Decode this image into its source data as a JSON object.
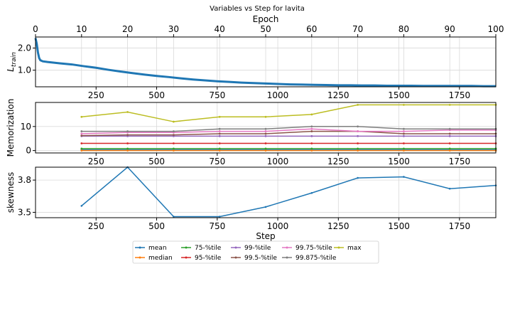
{
  "title": "Variables vs Step for lavita",
  "colors": {
    "mean": "#1f77b4",
    "median": "#ff7f0e",
    "p75": "#2ca02c",
    "p95": "#d62728",
    "p99": "#9467bd",
    "p995": "#8c564b",
    "p9975": "#e377c2",
    "p99875": "#7f7f7f",
    "max": "#bcbd22",
    "grid": "#d9d9d9"
  },
  "chart_data": [
    {
      "id": "loss",
      "type": "line",
      "ylabel_main": "L",
      "ylabel_sub": "train",
      "top_xlabel": "Epoch",
      "top_xlim": [
        0,
        100
      ],
      "top_ticks": [
        0,
        10,
        20,
        30,
        40,
        50,
        60,
        70,
        80,
        90,
        100
      ],
      "xlim": [
        0,
        1900
      ],
      "ylim": [
        0.25,
        2.5
      ],
      "yticks": [
        1.0,
        2.0
      ],
      "ytick_labels": [
        "1.0",
        "2.0"
      ],
      "series": [
        {
          "name": "loss",
          "x": [
            0,
            5,
            10,
            15,
            20,
            30,
            50,
            100,
            150,
            200,
            250,
            300,
            350,
            400,
            450,
            500,
            550,
            600,
            650,
            700,
            750,
            800,
            850,
            900,
            950,
            1000,
            1050,
            1100,
            1150,
            1200,
            1250,
            1300,
            1350,
            1400,
            1450,
            1500,
            1550,
            1600,
            1650,
            1700,
            1750,
            1800,
            1850,
            1900
          ],
          "y": [
            2.45,
            2.2,
            1.8,
            1.55,
            1.45,
            1.4,
            1.37,
            1.31,
            1.26,
            1.18,
            1.11,
            1.02,
            0.94,
            0.87,
            0.8,
            0.74,
            0.69,
            0.63,
            0.58,
            0.54,
            0.5,
            0.47,
            0.44,
            0.42,
            0.4,
            0.38,
            0.36,
            0.35,
            0.34,
            0.33,
            0.32,
            0.32,
            0.31,
            0.31,
            0.3,
            0.3,
            0.3,
            0.29,
            0.29,
            0.29,
            0.29,
            0.29,
            0.28,
            0.28
          ]
        }
      ]
    },
    {
      "id": "memorization",
      "type": "line",
      "ylabel": "Memorization",
      "xlim": [
        0,
        1900
      ],
      "ylim": [
        -1,
        20
      ],
      "yticks": [
        0,
        10
      ],
      "ytick_labels": [
        "0",
        "10"
      ],
      "x": [
        190,
        380,
        570,
        760,
        950,
        1140,
        1330,
        1520,
        1710,
        1900
      ],
      "series": [
        {
          "name": "mean",
          "colorKey": "mean",
          "values": [
            0.3,
            0.3,
            0.3,
            0.3,
            0.3,
            0.3,
            0.3,
            0.3,
            0.3,
            0.3
          ]
        },
        {
          "name": "median",
          "colorKey": "median",
          "values": [
            0,
            0,
            0,
            0,
            0,
            0,
            0,
            0,
            0,
            0
          ]
        },
        {
          "name": "75-%tile",
          "colorKey": "p75",
          "values": [
            0.8,
            0.8,
            0.8,
            0.8,
            0.8,
            0.8,
            0.8,
            0.8,
            0.8,
            0.8
          ]
        },
        {
          "name": "95-%tile",
          "colorKey": "p95",
          "values": [
            3,
            3,
            3,
            3,
            3,
            3,
            3,
            3,
            3,
            3
          ]
        },
        {
          "name": "99-%tile",
          "colorKey": "p99",
          "values": [
            6,
            6,
            6,
            6,
            6,
            6,
            6,
            6,
            6,
            6
          ]
        },
        {
          "name": "99.5-%tile",
          "colorKey": "p995",
          "values": [
            6.2,
            6.5,
            6.5,
            7,
            7,
            8,
            8,
            7,
            7,
            7
          ]
        },
        {
          "name": "99.75-%tile",
          "colorKey": "p9975",
          "values": [
            7,
            7.5,
            7.5,
            8,
            8,
            9,
            8,
            8,
            8.5,
            8.5
          ]
        },
        {
          "name": "99.875-%tile",
          "colorKey": "p99875",
          "values": [
            8,
            8,
            8,
            9,
            9,
            10,
            10,
            9,
            9,
            9
          ]
        },
        {
          "name": "max",
          "colorKey": "max",
          "values": [
            14,
            16,
            12,
            14,
            14,
            15,
            19,
            19,
            19,
            19
          ]
        }
      ]
    },
    {
      "id": "skewness",
      "type": "line",
      "ylabel": "skewness",
      "xlabel": "Step",
      "xlim": [
        0,
        1900
      ],
      "ylim": [
        3.45,
        3.92
      ],
      "yticks": [
        3.5,
        3.8
      ],
      "ytick_labels": [
        "3.5",
        "3.8"
      ],
      "xticks": [
        250,
        500,
        750,
        1000,
        1250,
        1500,
        1750
      ],
      "xtick_labels": [
        "250",
        "500",
        "750",
        "1000",
        "1250",
        "1500",
        "1750"
      ],
      "series": [
        {
          "name": "skewness",
          "colorKey": "mean",
          "x": [
            190,
            380,
            570,
            760,
            950,
            1140,
            1330,
            1520,
            1710,
            1900
          ],
          "values": [
            3.56,
            3.92,
            3.46,
            3.46,
            3.55,
            3.68,
            3.82,
            3.83,
            3.72,
            3.75
          ]
        }
      ]
    }
  ],
  "legend": {
    "placement": "lower-center",
    "entries": [
      {
        "label": "mean",
        "colorKey": "mean"
      },
      {
        "label": "median",
        "colorKey": "median"
      },
      {
        "label": "75-%tile",
        "colorKey": "p75"
      },
      {
        "label": "95-%tile",
        "colorKey": "p95"
      },
      {
        "label": "99-%tile",
        "colorKey": "p99"
      },
      {
        "label": "99.5-%tile",
        "colorKey": "p995"
      },
      {
        "label": "99.75-%tile",
        "colorKey": "p9975"
      },
      {
        "label": "99.875-%tile",
        "colorKey": "p99875"
      },
      {
        "label": "max",
        "colorKey": "max"
      }
    ]
  }
}
